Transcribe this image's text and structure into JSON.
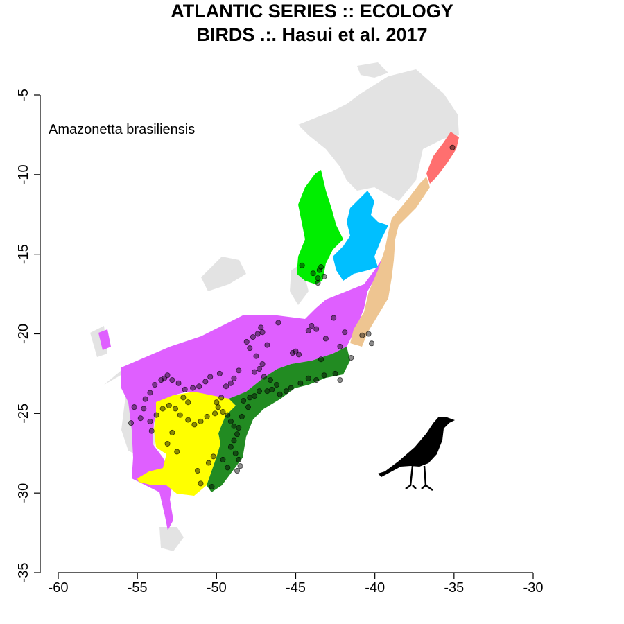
{
  "title_line1": "ATLANTIC SERIES :: ECOLOGY",
  "title_line2": "BIRDS .:. Hasui et al. 2017",
  "species": "Amazonetta brasiliensis",
  "colors": {
    "background_region": "#e3e3e3",
    "region_green": "#00ee00",
    "region_blue": "#00bfff",
    "region_salmon": "#ff6f6f",
    "region_tan": "#eec591",
    "region_violet": "#df5fff",
    "region_yellow": "#ffff00",
    "region_darkgreen": "#228b22",
    "points": "#000000"
  },
  "map_data": {
    "type": "scatter",
    "xlim": [
      -60,
      -30
    ],
    "ylim": [
      -35,
      -5
    ],
    "x_ticks": [
      -60,
      -55,
      -50,
      -45,
      -40,
      -35,
      -30
    ],
    "y_ticks": [
      -5,
      -10,
      -15,
      -20,
      -25,
      -30,
      -35
    ],
    "points": [
      [
        -35.1,
        -8.3
      ],
      [
        -43.4,
        -15.8
      ],
      [
        -43.5,
        -16.0
      ],
      [
        -43.6,
        -16.5
      ],
      [
        -43.2,
        -16.4
      ],
      [
        -43.9,
        -16.2
      ],
      [
        -44.6,
        -15.7
      ],
      [
        -43.6,
        -16.8
      ],
      [
        -44.0,
        -19.5
      ],
      [
        -43.7,
        -19.7
      ],
      [
        -44.2,
        -19.8
      ],
      [
        -42.6,
        -19.0
      ],
      [
        -43.1,
        -20.3
      ],
      [
        -42.2,
        -20.8
      ],
      [
        -47.2,
        -19.6
      ],
      [
        -47.1,
        -19.9
      ],
      [
        -47.7,
        -20.2
      ],
      [
        -46.8,
        -20.7
      ],
      [
        -45.0,
        -21.1
      ],
      [
        -44.8,
        -21.3
      ],
      [
        -45.2,
        -21.2
      ],
      [
        -43.4,
        -21.6
      ],
      [
        -41.5,
        -21.5
      ],
      [
        -40.4,
        -20.0
      ],
      [
        -40.2,
        -20.6
      ],
      [
        -40.8,
        -20.1
      ],
      [
        -48.1,
        -20.5
      ],
      [
        -47.9,
        -20.9
      ],
      [
        -47.5,
        -21.4
      ],
      [
        -47.1,
        -21.9
      ],
      [
        -47.3,
        -22.2
      ],
      [
        -47.6,
        -22.4
      ],
      [
        -47.0,
        -22.7
      ],
      [
        -46.6,
        -22.9
      ],
      [
        -46.2,
        -23.2
      ],
      [
        -46.5,
        -23.5
      ],
      [
        -46.8,
        -23.6
      ],
      [
        -47.3,
        -23.6
      ],
      [
        -46.0,
        -23.8
      ],
      [
        -45.6,
        -23.6
      ],
      [
        -45.3,
        -23.4
      ],
      [
        -44.7,
        -23.1
      ],
      [
        -44.2,
        -22.8
      ],
      [
        -43.7,
        -22.9
      ],
      [
        -43.2,
        -22.6
      ],
      [
        -42.5,
        -22.5
      ],
      [
        -42.2,
        -22.9
      ],
      [
        -48.6,
        -22.3
      ],
      [
        -48.9,
        -22.8
      ],
      [
        -49.1,
        -23.1
      ],
      [
        -49.4,
        -23.3
      ],
      [
        -49.8,
        -22.5
      ],
      [
        -50.4,
        -22.7
      ],
      [
        -50.7,
        -23.0
      ],
      [
        -51.1,
        -23.3
      ],
      [
        -51.5,
        -23.4
      ],
      [
        -52.0,
        -23.5
      ],
      [
        -52.4,
        -23.1
      ],
      [
        -52.8,
        -22.9
      ],
      [
        -53.1,
        -22.6
      ],
      [
        -53.3,
        -22.8
      ],
      [
        -53.5,
        -22.9
      ],
      [
        -53.9,
        -23.2
      ],
      [
        -54.2,
        -23.7
      ],
      [
        -54.5,
        -24.1
      ],
      [
        -54.6,
        -24.7
      ],
      [
        -54.8,
        -25.3
      ],
      [
        -54.2,
        -25.5
      ],
      [
        -53.8,
        -25.1
      ],
      [
        -53.4,
        -24.7
      ],
      [
        -53.0,
        -24.5
      ],
      [
        -52.6,
        -24.7
      ],
      [
        -52.3,
        -25.1
      ],
      [
        -51.8,
        -25.4
      ],
      [
        -51.4,
        -25.7
      ],
      [
        -51.0,
        -25.5
      ],
      [
        -50.6,
        -25.2
      ],
      [
        -50.1,
        -25.0
      ],
      [
        -49.9,
        -24.6
      ],
      [
        -49.6,
        -24.9
      ],
      [
        -49.3,
        -25.1
      ],
      [
        -49.1,
        -25.5
      ],
      [
        -48.9,
        -25.8
      ],
      [
        -48.6,
        -25.9
      ],
      [
        -48.7,
        -26.3
      ],
      [
        -48.9,
        -26.7
      ],
      [
        -49.1,
        -27.1
      ],
      [
        -48.8,
        -27.5
      ],
      [
        -48.6,
        -27.9
      ],
      [
        -48.5,
        -28.3
      ],
      [
        -48.7,
        -28.6
      ],
      [
        -49.3,
        -28.4
      ],
      [
        -49.6,
        -27.9
      ],
      [
        -50.2,
        -27.7
      ],
      [
        -50.5,
        -28.1
      ],
      [
        -51.2,
        -28.6
      ],
      [
        -51.0,
        -29.4
      ],
      [
        -50.3,
        -29.6
      ],
      [
        -52.8,
        -26.2
      ],
      [
        -53.1,
        -26.9
      ],
      [
        -52.5,
        -27.4
      ],
      [
        -55.2,
        -24.6
      ],
      [
        -55.4,
        -25.6
      ],
      [
        -54.1,
        -26.1
      ],
      [
        -48.3,
        -24.2
      ],
      [
        -48.0,
        -24.6
      ],
      [
        -47.9,
        -24.0
      ],
      [
        -47.6,
        -23.9
      ],
      [
        -48.4,
        -25.2
      ],
      [
        -49.7,
        -24.0
      ],
      [
        -50.0,
        -24.3
      ],
      [
        -51.8,
        -24.3
      ],
      [
        -52.1,
        -24.0
      ],
      [
        -47.4,
        -20.0
      ],
      [
        -46.1,
        -19.3
      ],
      [
        -41.9,
        -19.9
      ]
    ]
  }
}
